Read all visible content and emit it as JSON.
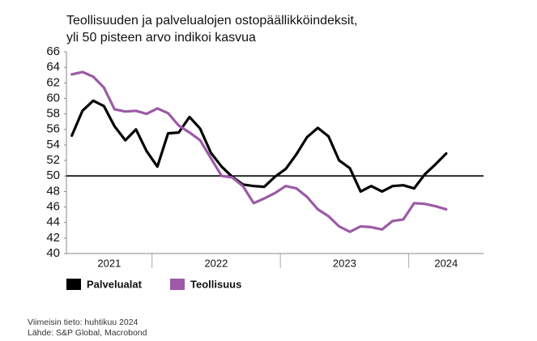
{
  "chart_data": {
    "type": "line",
    "title": "Teollisuuden ja palvelualojen ostopäällikköindeksit,",
    "subtitle": "yli 50 pisteen arvo indikoi kasvua",
    "x": [
      2021.375,
      2021.458,
      2021.542,
      2021.625,
      2021.708,
      2021.792,
      2021.875,
      2021.958,
      2022.042,
      2022.125,
      2022.208,
      2022.292,
      2022.375,
      2022.458,
      2022.542,
      2022.625,
      2022.708,
      2022.792,
      2022.875,
      2022.958,
      2023.042,
      2023.125,
      2023.208,
      2023.292,
      2023.375,
      2023.458,
      2023.542,
      2023.625,
      2023.708,
      2023.792,
      2023.875,
      2023.958,
      2024.042,
      2024.125,
      2024.208,
      2024.292
    ],
    "xlim": [
      2021.333,
      2024.583
    ],
    "xticks": [
      2022,
      2023,
      2024
    ],
    "year_labels": [
      "2021",
      "2022",
      "2023",
      "2024"
    ],
    "ylim": [
      40,
      66
    ],
    "yticks": [
      40,
      42,
      44,
      46,
      48,
      50,
      52,
      54,
      56,
      58,
      60,
      62,
      64,
      66
    ],
    "reference_line": 50,
    "series": [
      {
        "name": "Palvelualat",
        "color": "#000000",
        "values": [
          55.2,
          58.4,
          59.7,
          59.0,
          56.4,
          54.6,
          56.0,
          53.2,
          51.2,
          55.5,
          55.6,
          57.6,
          56.1,
          53.0,
          51.2,
          49.9,
          48.9,
          48.7,
          48.6,
          49.9,
          50.9,
          52.8,
          55.0,
          56.2,
          55.1,
          52.0,
          51.0,
          48.0,
          48.7,
          48.0,
          48.7,
          48.8,
          48.4,
          50.2,
          51.5,
          52.9
        ]
      },
      {
        "name": "Teollisuus",
        "color": "#9c5aa7",
        "values": [
          63.1,
          63.4,
          62.8,
          61.4,
          58.6,
          58.3,
          58.4,
          58.0,
          58.7,
          58.1,
          56.5,
          55.6,
          54.6,
          52.3,
          50.0,
          49.8,
          48.7,
          46.5,
          47.1,
          47.8,
          48.7,
          48.4,
          47.3,
          45.7,
          44.8,
          43.5,
          42.8,
          43.5,
          43.4,
          43.1,
          44.2,
          44.4,
          46.5,
          46.4,
          46.1,
          45.7
        ]
      }
    ],
    "notes": [
      "Viimeisin tieto: huhtikuu 2024",
      "Lähde: S&P Global, Macrobond"
    ]
  }
}
